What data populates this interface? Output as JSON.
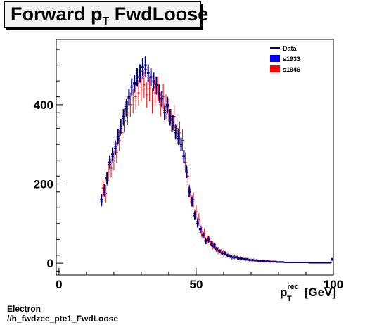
{
  "title": {
    "main": "Forward p",
    "sub": "T",
    "rest": " FwdLoose"
  },
  "footer": {
    "line1": "Electron",
    "line2": "//h_fwdzee_pte1_FwdLoose"
  },
  "colors": {
    "data": "#00007f",
    "s1933": "#0000ff",
    "s1946": "#ff0000"
  },
  "chart_data": {
    "type": "scatter",
    "title": "Forward pT FwdLoose",
    "xlabel": {
      "main": "p",
      "sup": "rec",
      "sub": "T",
      "unit": " [GeV]"
    },
    "ylabel": "",
    "xlim": [
      -1,
      100
    ],
    "ylim": [
      -30,
      565
    ],
    "xticks": [
      0,
      50,
      100
    ],
    "yticks": [
      0,
      200,
      400
    ],
    "grid": false,
    "legend": {
      "placement": "top-right",
      "entries": [
        "Data",
        "s1933",
        "s1946"
      ]
    },
    "series": [
      {
        "name": "Data",
        "style": "errorbar",
        "x": [
          15.5,
          16.5,
          17.5,
          18.5,
          19.5,
          20.5,
          21.5,
          22.5,
          23.5,
          24.5,
          25.5,
          26.5,
          27.5,
          28.5,
          29.5,
          30.5,
          31.5,
          32.5,
          33.5,
          34.5,
          35.5,
          36.5,
          37.5,
          38.5,
          39.5,
          40.5,
          41.5,
          42.5,
          43.5,
          44.5,
          45.5,
          46.5,
          47.5,
          48.5,
          49.5,
          50.5,
          51.5,
          52.5,
          53.5,
          54.5,
          55.5,
          56.5,
          57.5,
          58.5,
          59.5,
          60.5,
          61.5,
          62.5,
          63.5,
          64.5,
          65.5,
          66.5,
          67.5,
          68.5,
          69.5,
          70.5,
          71.5,
          72.5,
          73.5,
          74.5,
          75.5,
          76.5,
          77.5,
          78.5,
          79.5,
          80.5,
          81.5,
          82.5,
          83.5,
          84.5,
          85.5,
          86.5,
          87.5,
          88.5,
          89.5,
          90.5,
          91.5,
          92.5,
          93.5,
          94.5,
          95.5,
          96.5,
          97.5,
          98.5,
          99.5
        ],
        "y": [
          160,
          185,
          215,
          255,
          275,
          290,
          320,
          345,
          370,
          390,
          420,
          445,
          455,
          470,
          480,
          495,
          500,
          480,
          470,
          460,
          450,
          430,
          415,
          380,
          400,
          370,
          355,
          330,
          320,
          300,
          270,
          230,
          180,
          155,
          120,
          100,
          85,
          70,
          55,
          60,
          50,
          45,
          35,
          30,
          25,
          25,
          20,
          18,
          15,
          15,
          12,
          12,
          10,
          10,
          8,
          8,
          7,
          6,
          6,
          5,
          5,
          5,
          4,
          4,
          3,
          3,
          3,
          2,
          2,
          2,
          2,
          2,
          2,
          2,
          2,
          2,
          1,
          1,
          1,
          1,
          1,
          1,
          1,
          1,
          10
        ],
        "yerr": [
          14,
          14,
          15,
          16,
          17,
          17,
          18,
          19,
          19,
          20,
          21,
          21,
          21,
          22,
          22,
          22,
          22,
          22,
          22,
          21,
          21,
          21,
          20,
          19,
          20,
          19,
          19,
          18,
          18,
          17,
          16,
          15,
          13,
          12,
          11,
          10,
          9,
          8,
          7,
          8,
          7,
          7,
          6,
          5,
          5,
          5,
          4,
          4,
          4,
          4,
          3,
          3,
          3,
          3,
          3,
          3,
          3,
          2,
          2,
          2,
          2,
          2,
          2,
          2,
          2,
          2,
          2,
          1,
          1,
          1,
          1,
          1,
          1,
          1,
          1,
          1,
          1,
          1,
          1,
          1,
          1,
          1,
          1,
          1,
          3
        ]
      },
      {
        "name": "s1933",
        "style": "errorbar",
        "x": [
          15.5,
          16.5,
          17.5,
          18.5,
          19.5,
          20.5,
          21.5,
          22.5,
          23.5,
          24.5,
          25.5,
          26.5,
          27.5,
          28.5,
          29.5,
          30.5,
          31.5,
          32.5,
          33.5,
          34.5,
          35.5,
          36.5,
          37.5,
          38.5,
          39.5,
          40.5,
          41.5,
          42.5,
          43.5,
          44.5,
          45.5,
          46.5,
          47.5,
          48.5,
          49.5,
          50.5,
          51.5,
          52.5,
          53.5,
          54.5,
          55.5,
          56.5,
          57.5,
          58.5,
          59.5,
          60.5,
          61.5,
          62.5,
          63.5,
          64.5,
          65.5,
          66.5,
          67.5,
          68.5,
          69.5,
          70.5,
          71.5,
          72.5,
          73.5,
          74.5,
          75.5,
          76.5,
          77.5,
          78.5,
          79.5,
          80.5,
          81.5,
          82.5,
          83.5,
          84.5,
          85.5,
          86.5,
          87.5,
          88.5,
          89.5,
          90.5,
          91.5,
          92.5,
          93.5,
          94.5,
          95.5,
          96.5,
          97.5,
          98.5,
          99.5
        ],
        "y": [
          155,
          180,
          210,
          250,
          270,
          295,
          315,
          340,
          365,
          395,
          415,
          440,
          450,
          465,
          475,
          485,
          490,
          475,
          465,
          455,
          445,
          425,
          410,
          385,
          395,
          365,
          350,
          335,
          315,
          295,
          265,
          235,
          185,
          160,
          125,
          105,
          88,
          72,
          58,
          58,
          48,
          42,
          36,
          30,
          26,
          24,
          20,
          17,
          15,
          14,
          12,
          11,
          10,
          9,
          8,
          7,
          7,
          6,
          5,
          5,
          5,
          4,
          4,
          4,
          3,
          3,
          3,
          2,
          2,
          2,
          2,
          2,
          2,
          2,
          2,
          2,
          1,
          1,
          1,
          1,
          1,
          1,
          1,
          1,
          8
        ],
        "yerr": [
          12,
          13,
          14,
          15,
          16,
          16,
          17,
          18,
          18,
          19,
          20,
          20,
          20,
          21,
          21,
          21,
          21,
          21,
          21,
          20,
          20,
          20,
          19,
          19,
          19,
          18,
          18,
          17,
          17,
          16,
          15,
          14,
          13,
          12,
          11,
          10,
          9,
          8,
          7,
          7,
          6,
          6,
          6,
          5,
          5,
          5,
          4,
          4,
          4,
          3,
          3,
          3,
          3,
          3,
          3,
          3,
          2,
          2,
          2,
          2,
          2,
          2,
          2,
          2,
          2,
          2,
          2,
          1,
          1,
          1,
          1,
          1,
          1,
          1,
          1,
          1,
          1,
          1,
          1,
          1,
          1,
          1,
          1,
          1,
          3
        ]
      },
      {
        "name": "s1946",
        "style": "errorbar",
        "x": [
          16,
          17,
          18,
          19,
          20,
          21,
          22,
          23,
          24,
          25,
          26,
          27,
          28,
          29,
          30,
          31,
          32,
          33,
          34,
          35,
          36,
          37,
          38,
          39,
          40,
          41,
          42,
          43,
          44,
          45,
          46,
          47,
          48,
          49,
          50,
          51,
          52,
          53,
          54,
          55,
          56,
          57,
          58,
          59,
          60,
          61,
          62,
          63,
          64,
          65,
          66,
          67,
          68,
          69,
          70,
          71,
          72,
          73,
          74,
          75,
          76,
          77,
          78,
          79,
          80,
          81,
          82,
          83,
          84,
          85,
          86,
          87,
          88,
          89,
          90,
          91,
          92,
          93,
          94,
          95,
          96,
          97,
          98,
          99
        ],
        "y": [
          190,
          175,
          230,
          240,
          260,
          280,
          310,
          330,
          360,
          380,
          400,
          410,
          420,
          430,
          440,
          450,
          425,
          440,
          410,
          430,
          440,
          400,
          420,
          395,
          385,
          360,
          370,
          340,
          330,
          310,
          255,
          220,
          170,
          160,
          130,
          110,
          80,
          75,
          60,
          55,
          45,
          40,
          32,
          28,
          25,
          22,
          18,
          15,
          16,
          14,
          12,
          12,
          10,
          10,
          8,
          8,
          7,
          6,
          6,
          5,
          5,
          4,
          4,
          4,
          3,
          3,
          3,
          2,
          2,
          2,
          2,
          2,
          2,
          2,
          2,
          2,
          1,
          1,
          1,
          1,
          1,
          1,
          1,
          1
        ],
        "yerr": [
          22,
          22,
          24,
          24,
          25,
          26,
          27,
          28,
          29,
          30,
          31,
          31,
          32,
          32,
          32,
          33,
          32,
          32,
          32,
          32,
          32,
          31,
          32,
          31,
          30,
          29,
          30,
          29,
          28,
          27,
          25,
          23,
          20,
          19,
          17,
          16,
          14,
          13,
          12,
          11,
          10,
          9,
          9,
          8,
          8,
          7,
          6,
          6,
          6,
          5,
          5,
          5,
          5,
          4,
          4,
          4,
          4,
          3,
          3,
          3,
          3,
          3,
          3,
          3,
          2,
          2,
          2,
          2,
          2,
          2,
          2,
          2,
          2,
          2,
          2,
          2,
          1,
          1,
          1,
          1,
          1,
          1,
          1,
          1
        ]
      }
    ]
  }
}
